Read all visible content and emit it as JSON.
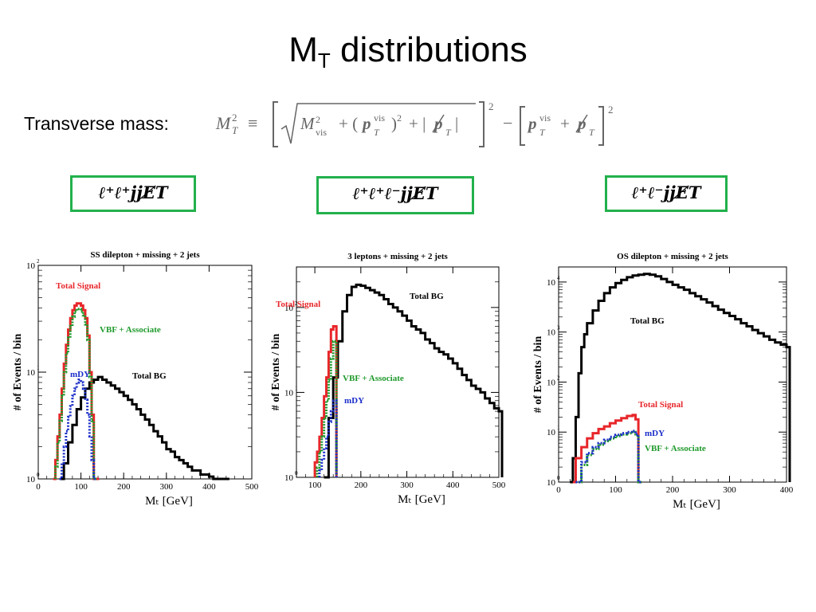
{
  "slide": {
    "title_main": "M",
    "title_sub": "T",
    "title_rest": " distributions",
    "transverse_label": "Transverse mass:"
  },
  "channels": [
    {
      "label": "ℓ⁺ℓ⁺jjE̸T"
    },
    {
      "label": "ℓ⁺ℓ⁺ℓ⁻jjE̸T"
    },
    {
      "label": "ℓ⁺ℓ⁻jjE̸T"
    }
  ],
  "colors": {
    "box_border": "#22b14c",
    "total_signal": "#e8262a",
    "vbf": "#1f9a2c",
    "mdy": "#1b2ec9",
    "total_bg": "#000000"
  },
  "chart_data": [
    {
      "type": "line",
      "title": "SS dilepton + missing + 2 jets",
      "xlabel": "M_T [GeV]",
      "ylabel": "# of Events / bin",
      "xlim": [
        0,
        500
      ],
      "ylim": [
        1,
        100
      ],
      "yscale": "log",
      "xticks": [
        0,
        100,
        200,
        300,
        400,
        500
      ],
      "yticks": [
        "10^0",
        "10^1",
        "10^2"
      ],
      "series": [
        {
          "name": "Total Signal",
          "color": "#e8262a",
          "x": [
            35,
            40,
            45,
            50,
            55,
            60,
            65,
            70,
            75,
            80,
            85,
            90,
            95,
            100,
            105,
            110,
            115,
            120,
            125,
            130,
            135
          ],
          "y": [
            1,
            1.5,
            2.5,
            4,
            7,
            12,
            18,
            25,
            32,
            38,
            42,
            44,
            44,
            42,
            38,
            32,
            22,
            10,
            4,
            1,
            1
          ]
        },
        {
          "name": "VBF + Associate",
          "color": "#1f9a2c",
          "x": [
            40,
            45,
            50,
            55,
            60,
            65,
            70,
            75,
            80,
            85,
            90,
            95,
            100,
            105,
            110,
            115,
            120,
            125,
            130
          ],
          "y": [
            1.3,
            2.2,
            3.5,
            6,
            10,
            15,
            21,
            27,
            33,
            37,
            39,
            39,
            37,
            34,
            28,
            20,
            9,
            3.5,
            1
          ]
        },
        {
          "name": "mDY",
          "color": "#1b2ec9",
          "x": [
            50,
            55,
            60,
            65,
            70,
            75,
            80,
            85,
            90,
            95,
            100,
            105,
            110,
            115,
            120,
            125,
            130
          ],
          "y": [
            1,
            1.4,
            2,
            2.8,
            3.8,
            4.8,
            6,
            7,
            8,
            8.5,
            8,
            7,
            5.5,
            4,
            2.5,
            1.5,
            1
          ]
        },
        {
          "name": "Total BG",
          "color": "#000000",
          "x": [
            50,
            60,
            70,
            80,
            90,
            100,
            110,
            120,
            130,
            140,
            150,
            160,
            170,
            180,
            190,
            200,
            210,
            220,
            230,
            240,
            250,
            260,
            270,
            280,
            290,
            300,
            310,
            320,
            330,
            340,
            350,
            360,
            370,
            380,
            390,
            400,
            410,
            420,
            430,
            440
          ],
          "y": [
            1,
            1.4,
            2.2,
            3.2,
            4.5,
            5.8,
            7,
            8,
            8.5,
            9,
            8.5,
            8,
            7.5,
            7,
            6.5,
            6,
            5.5,
            5,
            4.5,
            4,
            3.6,
            3.2,
            2.8,
            2.5,
            2.2,
            1.9,
            1.8,
            1.6,
            1.5,
            1.4,
            1.3,
            1.2,
            1.2,
            1.1,
            1.1,
            1.05,
            1,
            1,
            1,
            1
          ]
        }
      ],
      "annotations": [
        "Total Signal",
        "VBF + Associate",
        "mDY",
        "Total BG"
      ]
    },
    {
      "type": "line",
      "title": "3 leptons + missing + 2 jets",
      "xlabel": "M_T [GeV]",
      "ylabel": "# of Events / bin",
      "xlim": [
        60,
        500
      ],
      "ylim": [
        1,
        300
      ],
      "yscale": "log",
      "xticks": [
        100,
        200,
        300,
        400,
        500
      ],
      "yticks": [
        "10^0",
        "10^1",
        "10^2"
      ],
      "series": [
        {
          "name": "Total Signal",
          "color": "#e8262a",
          "x": [
            100,
            105,
            110,
            115,
            120,
            125,
            130,
            135,
            140
          ],
          "y": [
            1.5,
            2,
            3,
            5,
            9,
            15,
            30,
            55,
            60
          ]
        },
        {
          "name": "VBF + Associate",
          "color": "#1f9a2c",
          "x": [
            105,
            110,
            115,
            120,
            125,
            130,
            135,
            140
          ],
          "y": [
            1.3,
            2,
            3,
            5,
            8,
            14,
            25,
            40
          ]
        },
        {
          "name": "mDY",
          "color": "#1b2ec9",
          "x": [
            110,
            115,
            120,
            125,
            130,
            135,
            140
          ],
          "y": [
            1.2,
            1.6,
            2.2,
            3,
            4.5,
            6,
            8
          ]
        },
        {
          "name": "Total BG",
          "color": "#000000",
          "x": [
            120,
            130,
            140,
            150,
            160,
            170,
            180,
            190,
            200,
            210,
            220,
            230,
            240,
            250,
            260,
            270,
            280,
            290,
            300,
            310,
            320,
            330,
            340,
            350,
            360,
            370,
            380,
            390,
            400,
            410,
            420,
            430,
            440,
            450,
            460,
            470,
            480,
            490,
            500
          ],
          "y": [
            1,
            5,
            15,
            40,
            90,
            140,
            175,
            185,
            180,
            170,
            160,
            150,
            140,
            125,
            110,
            100,
            90,
            80,
            70,
            60,
            55,
            50,
            42,
            38,
            33,
            30,
            28,
            25,
            22,
            19,
            16,
            14,
            12,
            11,
            10,
            8.5,
            7.5,
            6.5,
            6
          ]
        }
      ],
      "annotations": [
        "Total Signal",
        "VBF + Associate",
        "mDY",
        "Total BG"
      ]
    },
    {
      "type": "line",
      "title": "OS dilepton + missing + 2 jets",
      "xlabel": "M_T [GeV]",
      "ylabel": "# of Events / bin",
      "xlim": [
        0,
        400
      ],
      "ylim": [
        1,
        20000
      ],
      "yscale": "log",
      "xticks": [
        0,
        100,
        200,
        300,
        400
      ],
      "yticks": [
        "10^0",
        "10^1",
        "10^2",
        "10^3",
        "10^4"
      ],
      "series": [
        {
          "name": "Total BG",
          "color": "#000000",
          "x": [
            20,
            25,
            30,
            35,
            40,
            45,
            50,
            60,
            70,
            80,
            90,
            100,
            110,
            120,
            130,
            140,
            150,
            160,
            170,
            180,
            190,
            200,
            210,
            220,
            230,
            240,
            250,
            260,
            270,
            280,
            290,
            300,
            310,
            320,
            330,
            340,
            350,
            360,
            370,
            380,
            390,
            400
          ],
          "y": [
            1,
            3,
            20,
            150,
            500,
            900,
            1500,
            2700,
            4200,
            6000,
            7800,
            9500,
            11000,
            12500,
            13500,
            14000,
            14500,
            14000,
            13000,
            11500,
            10000,
            8800,
            7800,
            7000,
            6000,
            5200,
            4500,
            3900,
            3300,
            2800,
            2400,
            2100,
            1800,
            1500,
            1300,
            1100,
            950,
            820,
            700,
            620,
            560,
            500
          ]
        },
        {
          "name": "Total Signal",
          "color": "#e8262a",
          "x": [
            25,
            30,
            40,
            50,
            60,
            70,
            80,
            90,
            100,
            110,
            120,
            130,
            135,
            140
          ],
          "y": [
            1,
            3,
            5,
            7.5,
            9.5,
            11.5,
            13,
            15,
            17,
            19,
            21,
            22,
            18,
            1
          ]
        },
        {
          "name": "mDY",
          "color": "#1b2ec9",
          "x": [
            30,
            40,
            50,
            60,
            70,
            80,
            90,
            100,
            110,
            120,
            130,
            135,
            140
          ],
          "y": [
            1,
            2.5,
            3.8,
            5,
            6,
            7,
            8,
            8.8,
            9.5,
            10,
            10.5,
            9,
            1
          ]
        },
        {
          "name": "VBF + Associate",
          "color": "#1f9a2c",
          "x": [
            30,
            40,
            50,
            60,
            70,
            80,
            90,
            100,
            110,
            120,
            130,
            135,
            140
          ],
          "y": [
            1,
            2.2,
            3.5,
            4.6,
            5.6,
            6.6,
            7.5,
            8.3,
            9,
            9.5,
            10,
            8.5,
            1
          ]
        }
      ],
      "annotations": [
        "Total BG",
        "Total Signal",
        "mDY",
        "VBF + Associate"
      ]
    }
  ]
}
